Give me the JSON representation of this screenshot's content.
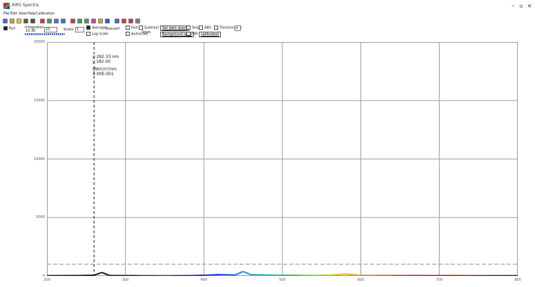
{
  "window": {
    "title": "AIRS Spectra",
    "minimize_glyph": "–",
    "maximize_glyph": "▫",
    "close_glyph": "×"
  },
  "menu": [
    "File",
    "Edit",
    "View",
    "Help",
    "Calibration"
  ],
  "toolbar": {
    "icons": [
      "open-icon",
      "save-icon",
      "folder-icon",
      "copy-icon",
      "print-icon",
      "color-icon",
      "zoom-icon",
      "export-icon",
      "arrow-icon",
      "cursor-icon",
      "move-icon",
      "refresh-icon",
      "paint-icon",
      "gradient-icon",
      "chart-icon",
      "dropper-icon",
      "marker-icon",
      "line-icon",
      "help-icon"
    ]
  },
  "controls": {
    "run_label": "Run",
    "integration_label": "Integration",
    "integration_value": "10",
    "integration_unit": "10.30",
    "scans_label": "Scans",
    "scans_value": "1",
    "average_label": "Average",
    "boxcar_label": "Boxcar",
    "boxcar_value": "0",
    "log_scale_label": "Log scale",
    "fast_label": "Fast",
    "subtract_label": "Subtract",
    "autoscale_label": "Autoscale",
    "set_dark_label": "Set dark spect",
    "stop_label": "Stop",
    "store_label": "Store",
    "background_label": "Background spec",
    "irr_label": "IRR",
    "abs_label": "ABS",
    "trans_label": "Transmission",
    "calibrate_label": "calibration",
    "progress": 1.0
  },
  "cursor_readout": {
    "line1": "x:282.33 nm",
    "line2": "y:182.00",
    "line3": "dW/cm²/nm",
    "line4": "4.00E-001"
  },
  "chart_data": {
    "type": "line",
    "title": "",
    "xlabel": "",
    "ylabel": "",
    "xlim": [
      200,
      1100
    ],
    "ylim": [
      0,
      20000
    ],
    "x_ticks": [
      "200",
      "300",
      "400",
      "500",
      "600",
      "700",
      "800"
    ],
    "y_ticks": [
      "20000",
      "15000",
      "10000",
      "5000",
      "0"
    ],
    "grid": true,
    "threshold_y": 1000,
    "cursor_x": 260,
    "x": [
      200,
      220,
      240,
      260,
      270,
      280,
      300,
      320,
      340,
      360,
      380,
      400,
      420,
      440,
      450,
      460,
      480,
      500,
      520,
      540,
      560,
      580,
      600,
      620,
      640,
      660,
      680,
      700,
      720,
      740,
      760,
      780,
      800
    ],
    "y": [
      20,
      30,
      40,
      60,
      300,
      40,
      30,
      25,
      20,
      20,
      30,
      60,
      120,
      90,
      380,
      110,
      80,
      60,
      50,
      40,
      70,
      160,
      50,
      40,
      35,
      40,
      35,
      30,
      30,
      25,
      20,
      20,
      20
    ],
    "colors": [
      "#1a1a1a",
      "#1a1a1a",
      "#1a1a1a",
      "#1a1a1a",
      "#1a1a1a",
      "#1a1a1a",
      "#1a1a1a",
      "#2b2b2b",
      "#3a3a3a",
      "#1f1f6a",
      "#2a1fb0",
      "#2036d8",
      "#1f58e6",
      "#1f7ee0",
      "#1f96d8",
      "#1fb0c8",
      "#1fc0a0",
      "#2dbf55",
      "#6bc22a",
      "#a6c21a",
      "#d6c21a",
      "#e8a21a",
      "#ea7a1a",
      "#e8541a",
      "#e4301a",
      "#d81c1a",
      "#c21a1a",
      "#a61a1a",
      "#8c1a1a",
      "#6e1a1a",
      "#4e1a1a",
      "#3a1a1a",
      "#2a1a1a"
    ]
  },
  "status": {
    "text": ""
  }
}
